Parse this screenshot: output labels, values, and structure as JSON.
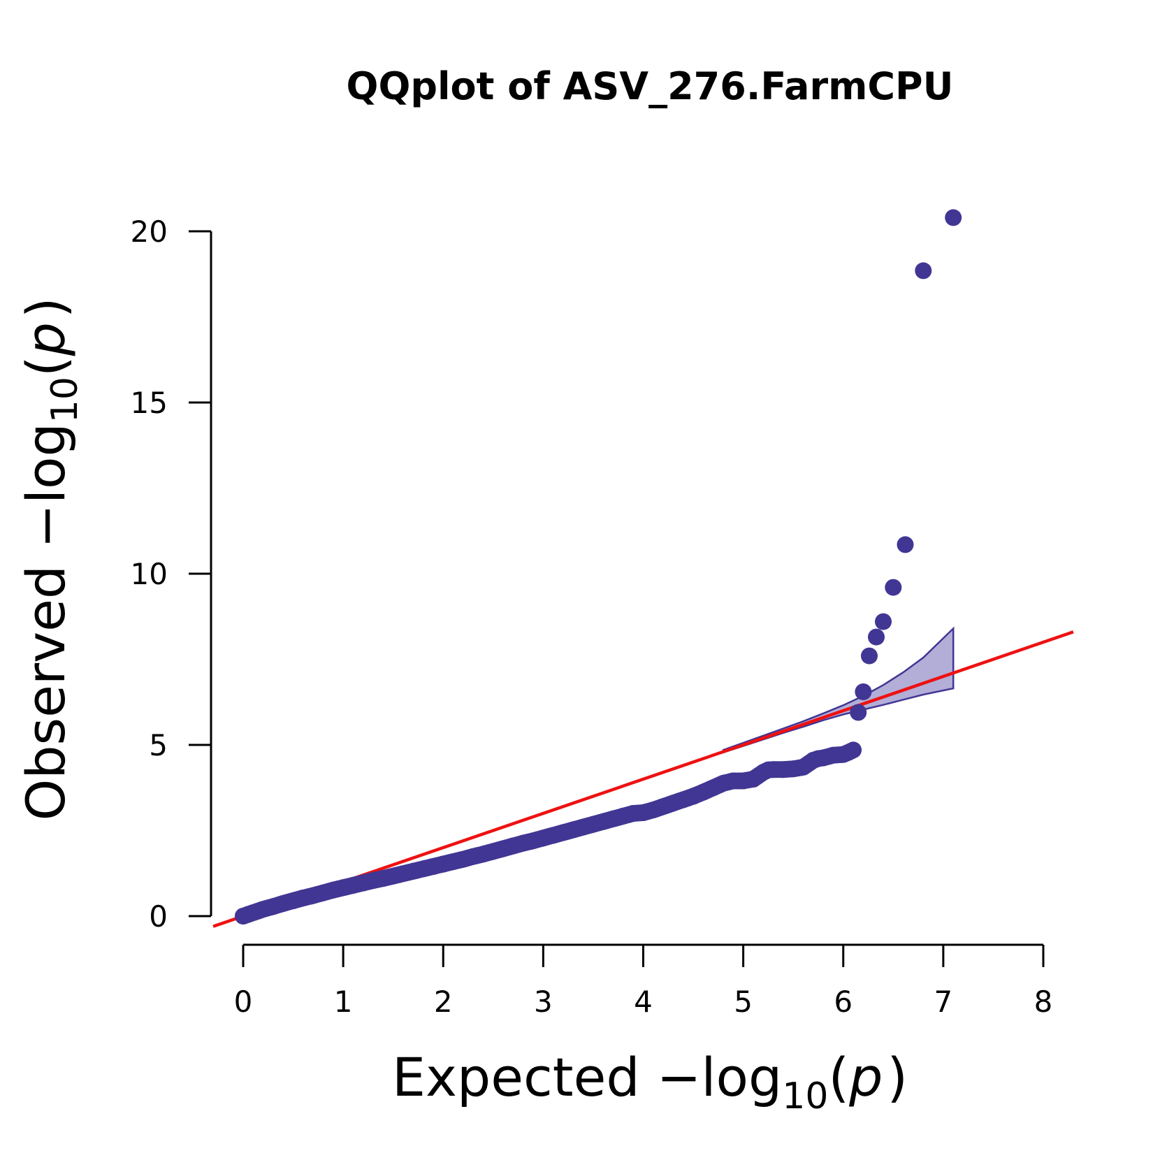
{
  "colors": {
    "points": "#413693",
    "ci_fill": "#b2aed8",
    "ci_line": "#413693",
    "reference_line": "#ee1111",
    "axis": "#000000"
  },
  "chart_data": {
    "type": "scatter",
    "title": "QQplot of ASV_276.FarmCPU",
    "xlabel": {
      "prefix": "Expected  −log",
      "subscript": "10",
      "open": "(",
      "var": "p",
      "close": ")"
    },
    "ylabel": {
      "prefix": "Observed  −log",
      "subscript": "10",
      "open": "(",
      "var": "p",
      "close": ")"
    },
    "xlim": [
      0,
      8
    ],
    "ylim": [
      0,
      20
    ],
    "xticks": [
      "0",
      "1",
      "2",
      "3",
      "4",
      "5",
      "6",
      "7",
      "8"
    ],
    "yticks": [
      "0",
      "5",
      "10",
      "15",
      "20"
    ],
    "grid": false,
    "reference_line": {
      "slope": 1,
      "intercept": 0
    },
    "confidence_band": {
      "x": [
        4.8,
        5.0,
        5.2,
        5.4,
        5.6,
        5.8,
        6.0,
        6.2,
        6.4,
        6.6,
        6.8,
        7.1
      ],
      "upper": [
        4.85,
        5.06,
        5.27,
        5.48,
        5.69,
        5.92,
        6.16,
        6.43,
        6.75,
        7.12,
        7.55,
        8.4
      ],
      "lower": [
        4.78,
        4.97,
        5.16,
        5.35,
        5.53,
        5.72,
        5.89,
        6.03,
        6.17,
        6.32,
        6.47,
        6.65
      ]
    },
    "series": [
      {
        "x": [
          0,
          0.05,
          0.1,
          0.15,
          0.2,
          0.3,
          0.4,
          0.5,
          0.6,
          0.7,
          0.8,
          0.9,
          1.0,
          1.1,
          1.2,
          1.3,
          1.4,
          1.5,
          1.6,
          1.7,
          1.8,
          1.9,
          2.0,
          2.1,
          2.2,
          2.3,
          2.4,
          2.5,
          2.6,
          2.7,
          2.8,
          2.9,
          3.0,
          3.1,
          3.2,
          3.3,
          3.4,
          3.5,
          3.6,
          3.7,
          3.8,
          3.9,
          4.0,
          4.1,
          4.2,
          4.3,
          4.4,
          4.5,
          4.6,
          4.7,
          4.8,
          4.9,
          5.0,
          5.1,
          5.2,
          5.25,
          5.3,
          5.4,
          5.5,
          5.6,
          5.7,
          5.75,
          5.8,
          5.9,
          6.0,
          6.05,
          6.1,
          6.15,
          6.2,
          6.26,
          6.33,
          6.4,
          6.5,
          6.62,
          6.8,
          7.1
        ],
        "y": [
          0.0,
          0.05,
          0.1,
          0.15,
          0.2,
          0.28,
          0.37,
          0.45,
          0.53,
          0.6,
          0.68,
          0.76,
          0.83,
          0.9,
          0.97,
          1.04,
          1.1,
          1.17,
          1.24,
          1.31,
          1.38,
          1.45,
          1.52,
          1.59,
          1.66,
          1.74,
          1.81,
          1.89,
          1.97,
          2.05,
          2.13,
          2.2,
          2.28,
          2.36,
          2.44,
          2.52,
          2.6,
          2.68,
          2.76,
          2.84,
          2.92,
          3.0,
          3.02,
          3.1,
          3.2,
          3.3,
          3.4,
          3.5,
          3.62,
          3.75,
          3.88,
          3.95,
          3.95,
          4.0,
          4.2,
          4.27,
          4.28,
          4.28,
          4.3,
          4.35,
          4.55,
          4.6,
          4.62,
          4.7,
          4.72,
          4.78,
          4.85,
          5.95,
          6.55,
          7.6,
          8.15,
          8.6,
          9.6,
          10.85,
          18.85,
          20.4
        ]
      }
    ]
  }
}
